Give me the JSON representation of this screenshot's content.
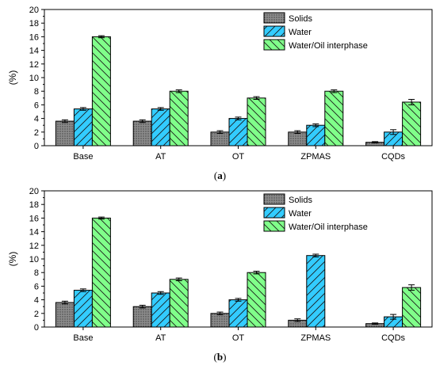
{
  "chart_data": [
    {
      "type": "bar",
      "panel_label": {
        "open": "(",
        "letter": "a",
        "close": ")"
      },
      "categories": [
        "Base",
        "AT",
        "OT",
        "ZPMAS",
        "CQDs"
      ],
      "ylabel": "(%)",
      "xlabel": "",
      "ylim": [
        0,
        20
      ],
      "yticks": [
        "0",
        "2",
        "4",
        "6",
        "8",
        "10",
        "12",
        "14",
        "16",
        "18",
        "20"
      ],
      "legend_position": "top-right",
      "error_bars": true,
      "series": [
        {
          "name": "Solids",
          "color": "#8c8c8c",
          "pattern": "dots",
          "values": [
            3.6,
            3.6,
            2.0,
            2.0,
            0.5
          ],
          "errors": [
            0.2,
            0.2,
            0.2,
            0.2,
            0.1
          ]
        },
        {
          "name": "Water",
          "color": "#33ccff",
          "pattern": "diagonal",
          "values": [
            5.4,
            5.4,
            4.0,
            3.0,
            2.0
          ],
          "errors": [
            0.2,
            0.2,
            0.2,
            0.2,
            0.35
          ]
        },
        {
          "name": "Water/Oil interphase",
          "color": "#80ff8a",
          "pattern": "diagonal",
          "values": [
            16.0,
            8.0,
            7.0,
            8.0,
            6.4
          ],
          "errors": [
            0.15,
            0.2,
            0.2,
            0.2,
            0.4
          ]
        }
      ]
    },
    {
      "type": "bar",
      "panel_label": {
        "open": "(",
        "letter": "b",
        "close": ")"
      },
      "categories": [
        "Base",
        "AT",
        "OT",
        "ZPMAS",
        "CQDs"
      ],
      "ylabel": "(%)",
      "xlabel": "",
      "ylim": [
        0,
        20
      ],
      "yticks": [
        "0",
        "2",
        "4",
        "6",
        "8",
        "10",
        "12",
        "14",
        "16",
        "18",
        "20"
      ],
      "legend_position": "top-right",
      "error_bars": true,
      "series": [
        {
          "name": "Solids",
          "color": "#8c8c8c",
          "pattern": "dots",
          "values": [
            3.6,
            3.0,
            2.0,
            1.0,
            0.5
          ],
          "errors": [
            0.2,
            0.2,
            0.2,
            0.2,
            0.1
          ]
        },
        {
          "name": "Water",
          "color": "#33ccff",
          "pattern": "diagonal",
          "values": [
            5.4,
            5.0,
            4.0,
            10.5,
            1.5
          ],
          "errors": [
            0.2,
            0.2,
            0.2,
            0.2,
            0.35
          ]
        },
        {
          "name": "Water/Oil interphase",
          "color": "#80ff8a",
          "pattern": "diagonal",
          "values": [
            16.0,
            7.0,
            8.0,
            0,
            5.8
          ],
          "errors": [
            0.15,
            0.2,
            0.2,
            0,
            0.4
          ]
        }
      ]
    }
  ]
}
